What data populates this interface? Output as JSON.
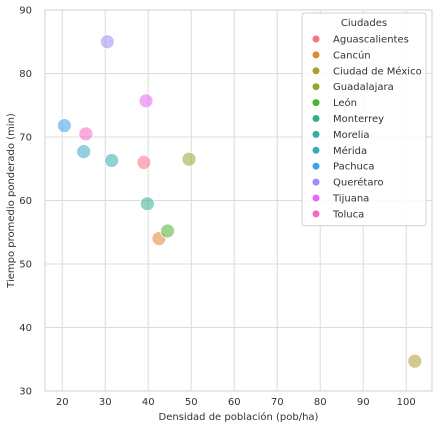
{
  "chart_data": {
    "type": "scatter",
    "title": "",
    "xlabel": "Densidad de población (pob/ha)",
    "ylabel": "Tiempo promedio ponderado (min)",
    "xlim": [
      16,
      106
    ],
    "ylim": [
      30,
      90
    ],
    "xticks": [
      20,
      30,
      40,
      50,
      60,
      70,
      80,
      90,
      100
    ],
    "yticks": [
      30,
      40,
      50,
      60,
      70,
      80,
      90
    ],
    "grid": true,
    "legend": {
      "title": "Ciudades",
      "placement": "top-right"
    },
    "series": [
      {
        "name": "Aguascalientes",
        "color": "#f77189",
        "points": [
          {
            "x": 39,
            "y": 66
          }
        ]
      },
      {
        "name": "Cancún",
        "color": "#dc8932",
        "points": [
          {
            "x": 42.5,
            "y": 54
          }
        ]
      },
      {
        "name": "Ciudad de México",
        "color": "#ae9d31",
        "points": [
          {
            "x": 102,
            "y": 34.7
          }
        ]
      },
      {
        "name": "Guadalajara",
        "color": "#97a431",
        "points": [
          {
            "x": 49.5,
            "y": 66.5
          }
        ]
      },
      {
        "name": "León",
        "color": "#50b131",
        "points": [
          {
            "x": 44.5,
            "y": 55.2
          }
        ]
      },
      {
        "name": "Monterrey",
        "color": "#34ae91",
        "points": [
          {
            "x": 39.8,
            "y": 59.5
          }
        ]
      },
      {
        "name": "Morelia",
        "color": "#36ada4",
        "points": [
          {
            "x": 31.5,
            "y": 66.3
          }
        ]
      },
      {
        "name": "Mérida",
        "color": "#38aabf",
        "points": [
          {
            "x": 25,
            "y": 67.7
          }
        ]
      },
      {
        "name": "Pachuca",
        "color": "#3ba3ec",
        "points": [
          {
            "x": 20.5,
            "y": 71.8
          }
        ]
      },
      {
        "name": "Querétaro",
        "color": "#a48cf4",
        "points": [
          {
            "x": 30.5,
            "y": 85
          }
        ]
      },
      {
        "name": "Tijuana",
        "color": "#e866f4",
        "points": [
          {
            "x": 39.5,
            "y": 75.7
          }
        ]
      },
      {
        "name": "Toluca",
        "color": "#f668c2",
        "points": [
          {
            "x": 25.5,
            "y": 70.5
          }
        ]
      }
    ]
  }
}
